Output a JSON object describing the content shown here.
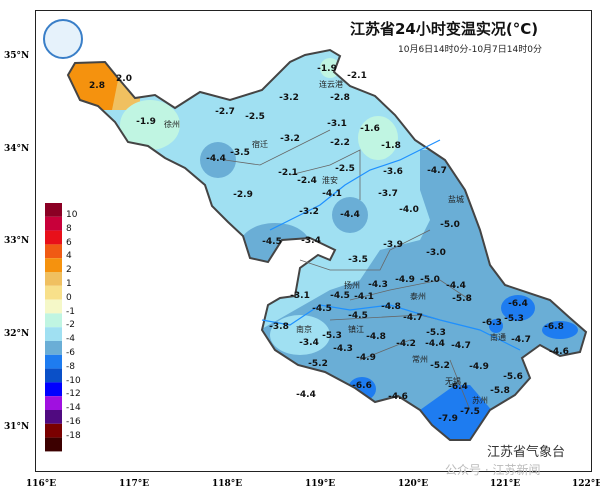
{
  "title": "江苏省24小时变温实况(°C)",
  "subtitle": "10月6日14时0分-10月7日14时0分",
  "credit": "江苏省气象台",
  "watermark": "公众号 · 江苏新闻",
  "lat_ticks": [
    "35°N",
    "34°N",
    "33°N",
    "32°N",
    "31°N"
  ],
  "lon_ticks": [
    "116°E",
    "117°E",
    "118°E",
    "119°E",
    "120°E",
    "121°E",
    "122°E"
  ],
  "legend": {
    "labels": [
      "10",
      "8",
      "6",
      "4",
      "2",
      "1",
      "0",
      "-1",
      "-2",
      "-4",
      "-6",
      "-8",
      "-10",
      "-12",
      "-14",
      "-16",
      "-18"
    ],
    "colors": [
      "#8b0024",
      "#c8003a",
      "#e8101a",
      "#f05a14",
      "#f5920e",
      "#f0c060",
      "#f8e08a",
      "#f5f8c8",
      "#c0f5e2",
      "#a0e0f2",
      "#6aaed6",
      "#1e7cf0",
      "#0a50c8",
      "#0000ff",
      "#a010e0",
      "#500a80",
      "#7a0000",
      "#3c0000"
    ]
  },
  "cities": [
    "连云港",
    "徐州",
    "宿迁",
    "淮安",
    "盐城",
    "扬州",
    "泰州",
    "镇江",
    "南京",
    "南通",
    "常州",
    "无锡",
    "苏州"
  ],
  "values": [
    "2.8",
    "2.0",
    "-1.9",
    "-2.7",
    "-2.5",
    "-3.2",
    "-1.9",
    "-2.1",
    "-2.8",
    "-3.1",
    "-1.6",
    "-3.2",
    "-2.2",
    "-1.8",
    "-3.5",
    "-4.4",
    "-2.1",
    "-2.4",
    "-2.5",
    "-3.6",
    "-4.7",
    "-2.9",
    "-4.1",
    "-3.7",
    "-4.0",
    "-5.0",
    "-3.2",
    "-4.4",
    "-4.5",
    "-3.4",
    "-3.9",
    "-3.0",
    "-3.5",
    "-4.9",
    "-5.0",
    "-4.4",
    "-4.3",
    "-4.1",
    "-4.5",
    "-4.5",
    "-3.1",
    "-5.8",
    "-6.4",
    "-4.8",
    "-4.5",
    "-4.7",
    "-3.8",
    "-3.4",
    "-5.3",
    "-4.8",
    "-5.3",
    "-6.3",
    "-5.3",
    "-6.8",
    "-4.7",
    "-4.2",
    "-4.4",
    "-4.7",
    "-4.6",
    "-4.3",
    "-4.9",
    "-5.2",
    "-5.2",
    "-4.9",
    "-5.6",
    "-5.8",
    "-6.6",
    "-4.6",
    "-6.4",
    "-4.4",
    "-7.5",
    "-7.9"
  ]
}
